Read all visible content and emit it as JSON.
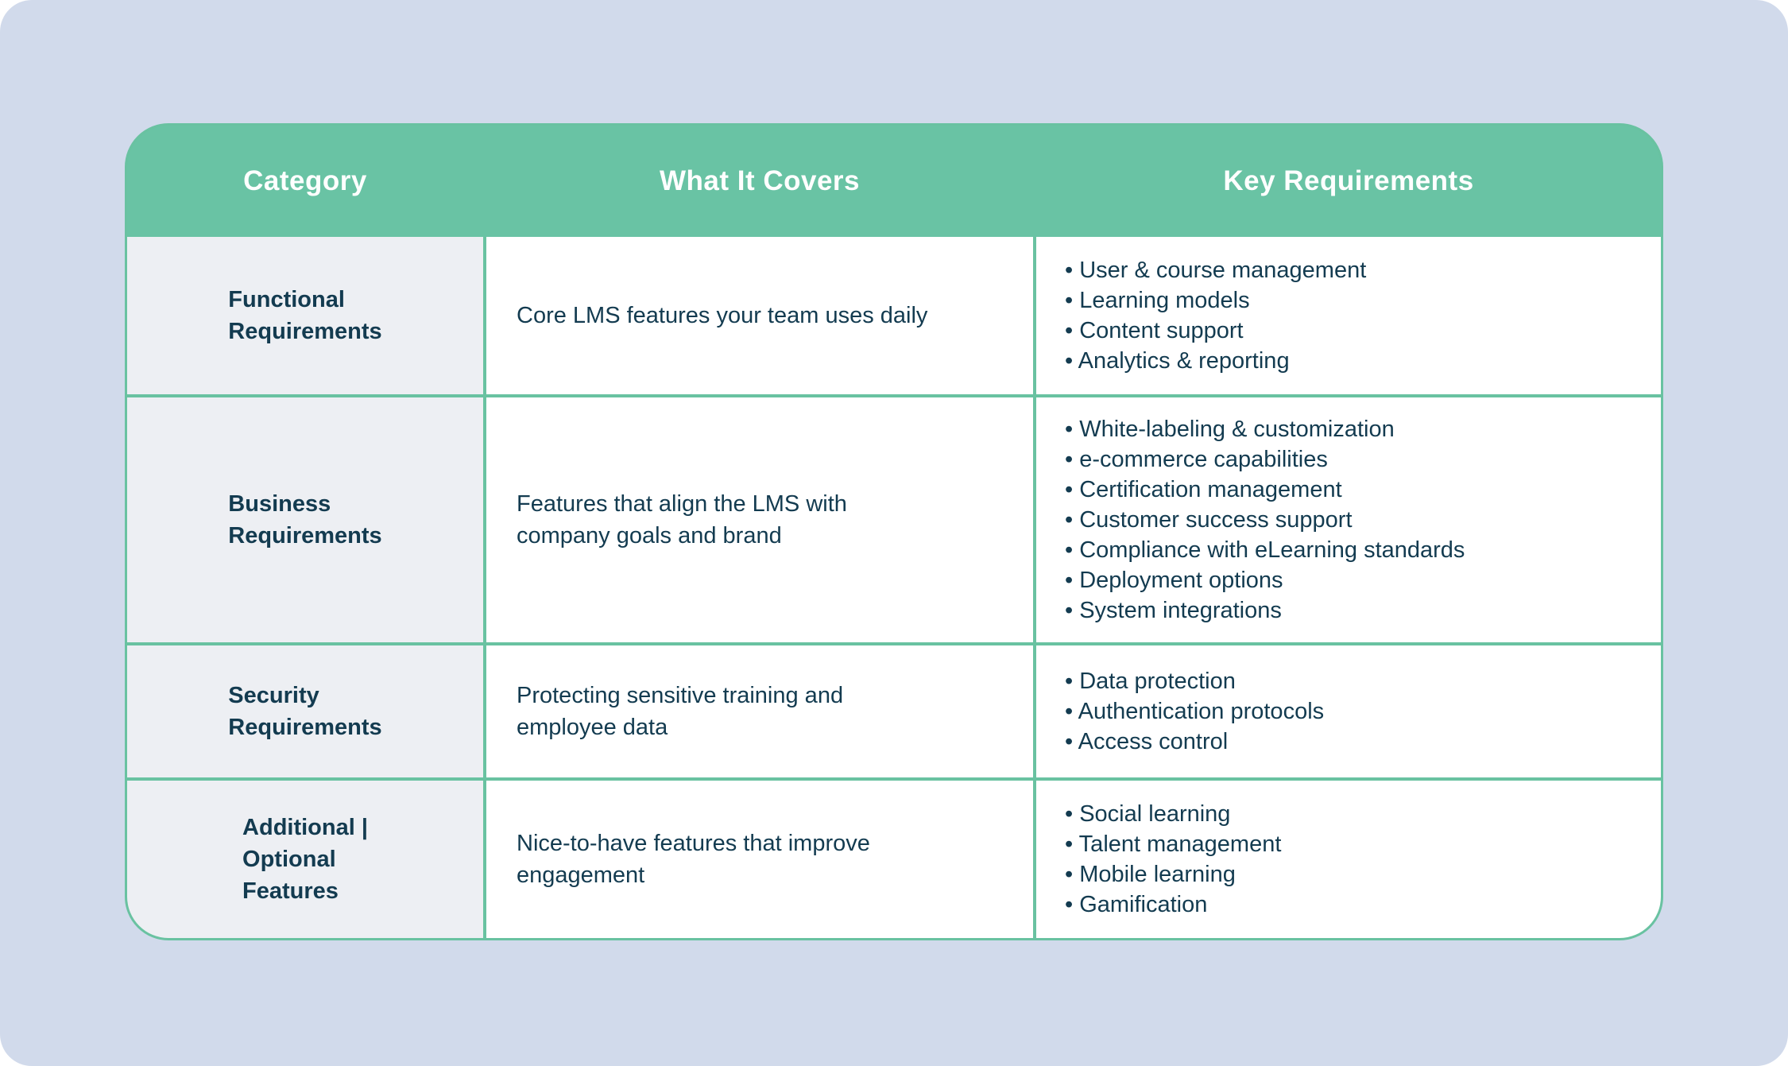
{
  "colors": {
    "page_background": "#d1daeb",
    "header_background": "#69c3a4",
    "grid_lines": "#69c2a1",
    "category_cell_background": "#edeff3",
    "body_cell_background": "#ffffff",
    "header_text": "#ffffff",
    "body_text": "#133b50"
  },
  "table": {
    "bullet": "•",
    "headers": [
      "Category",
      "What It Covers",
      "Key Requirements"
    ],
    "rows": [
      {
        "category_lines": [
          "Functional",
          "Requirements"
        ],
        "covers_lines": [
          "Core LMS features your team uses daily"
        ],
        "requirements": [
          "User & course management",
          "Learning models",
          "Content support",
          "Analytics & reporting"
        ]
      },
      {
        "category_lines": [
          "Business",
          "Requirements"
        ],
        "covers_lines": [
          "Features that align the LMS with",
          "company goals and brand"
        ],
        "requirements": [
          "White-labeling & customization",
          "e-commerce capabilities",
          "Certification management",
          "Customer success support",
          "Compliance with eLearning standards",
          "Deployment options",
          "System integrations"
        ]
      },
      {
        "category_lines": [
          "Security",
          "Requirements"
        ],
        "covers_lines": [
          "Protecting sensitive training and",
          "employee data"
        ],
        "requirements": [
          "Data protection",
          "Authentication protocols",
          "Access control"
        ]
      },
      {
        "category_lines": [
          "Additional |",
          "Optional",
          "Features"
        ],
        "covers_lines": [
          "Nice-to-have features that improve",
          "engagement"
        ],
        "requirements": [
          "Social learning",
          "Talent management",
          "Mobile learning",
          "Gamification"
        ]
      }
    ]
  }
}
